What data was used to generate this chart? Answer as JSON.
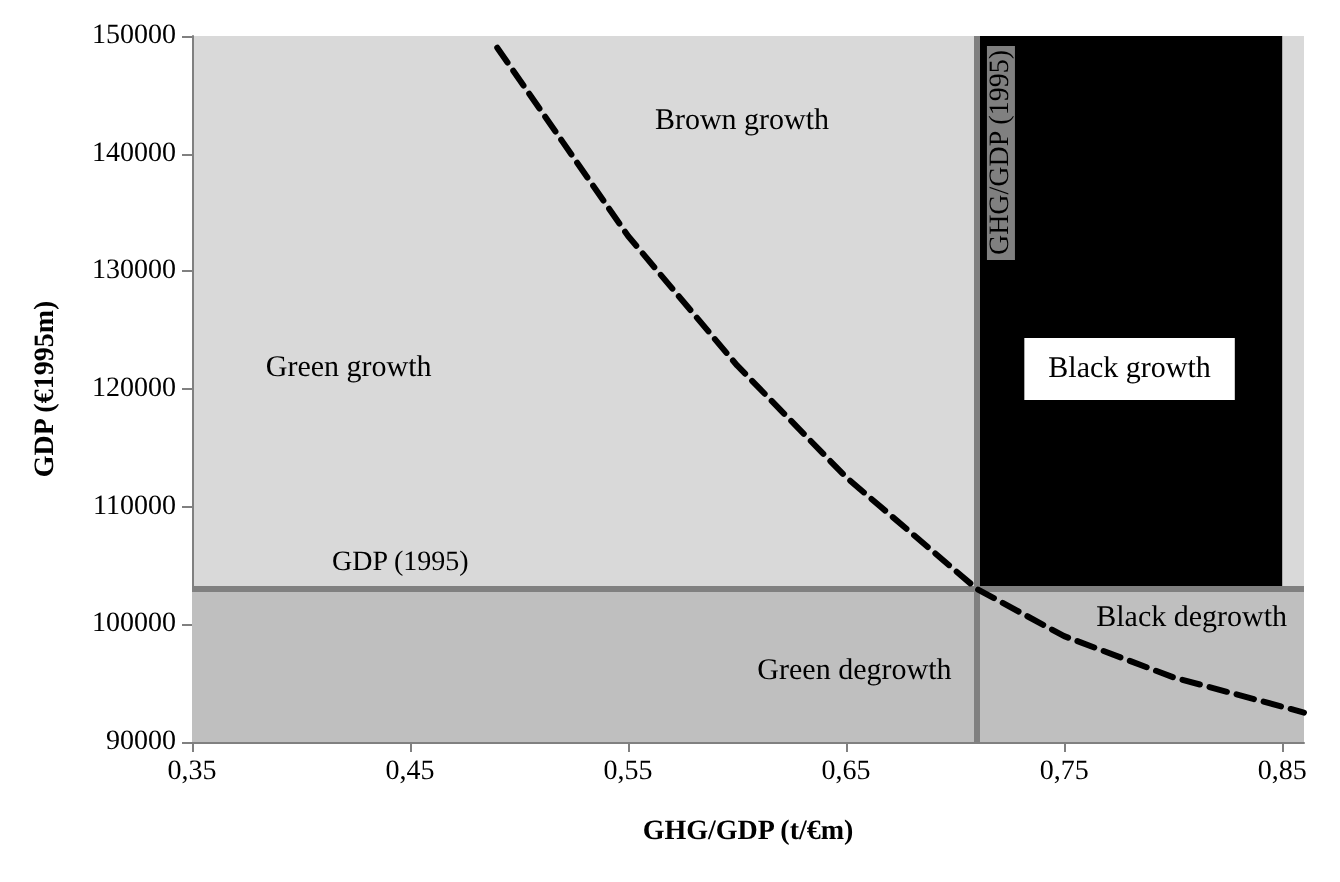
{
  "chart_data": {
    "type": "line",
    "xlabel": "GHG/GDP (t/€m)",
    "ylabel": "GDP (€1995m)",
    "xlim": [
      0.35,
      0.86
    ],
    "xticks": [
      {
        "value": 0.35,
        "label": "0,35"
      },
      {
        "value": 0.45,
        "label": "0,45"
      },
      {
        "value": 0.55,
        "label": "0,55"
      },
      {
        "value": 0.65,
        "label": "0,65"
      },
      {
        "value": 0.75,
        "label": "0,75"
      },
      {
        "value": 0.85,
        "label": "0,85"
      }
    ],
    "ylim": [
      90000,
      150000
    ],
    "yticks": [
      90000,
      100000,
      110000,
      120000,
      130000,
      140000,
      150000
    ],
    "marker": "none",
    "line_style": "dashed",
    "series": [
      {
        "color": "#000000",
        "x": [
          0.49,
          0.52,
          0.55,
          0.6,
          0.65,
          0.71,
          0.75,
          0.8,
          0.86
        ],
        "values": [
          149000,
          141000,
          133000,
          122000,
          112500,
          103000,
          99000,
          95500,
          92500
        ]
      }
    ],
    "bands": [
      {
        "axis": "x",
        "from": 0.71,
        "to": 0.85,
        "label": "Black growth",
        "color": "#000000"
      },
      {
        "axis": "y",
        "from": 90000,
        "to": 103000,
        "color": "#bfbfbf"
      }
    ],
    "ref_lines": [
      {
        "axis": "x",
        "value": 0.71,
        "label": "GHG/GDP (1995)",
        "color": "#808080"
      },
      {
        "axis": "y",
        "value": 103000,
        "label": "GDP (1995)",
        "color": "#808080"
      }
    ],
    "annotations": [
      "Brown growth",
      "Green growth",
      "Green degrowth",
      "Black degrowth"
    ]
  }
}
